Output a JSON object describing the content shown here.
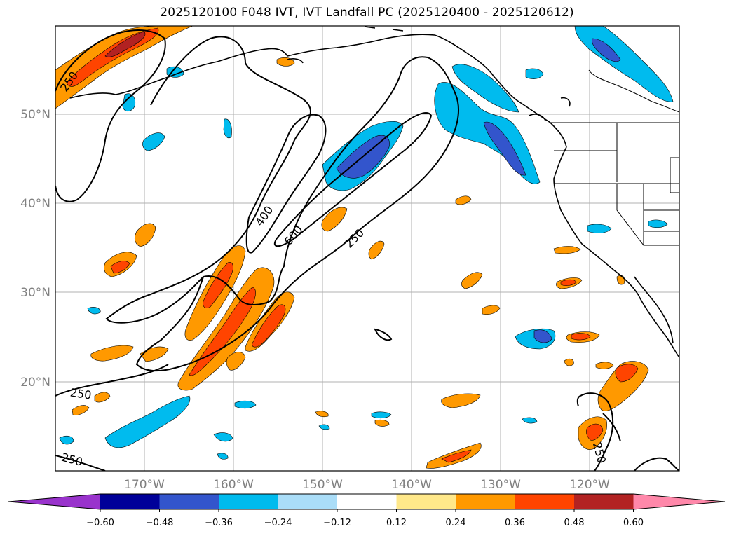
{
  "title": "2025120100 F048 IVT, IVT Landfall PC (2025120400 - 2025120612)",
  "map": {
    "lat_labels": [
      "50°N",
      "40°N",
      "30°N",
      "20°N"
    ],
    "lon_labels": [
      "170°W",
      "160°W",
      "150°W",
      "140°W",
      "130°W",
      "120°W"
    ],
    "contour_labels": [
      "250",
      "400",
      "600",
      "250",
      "250",
      "250",
      "250"
    ],
    "contour_color": "#000000",
    "grid": true
  },
  "colorbar": {
    "ticks": [
      "−0.60",
      "−0.48",
      "−0.36",
      "−0.24",
      "−0.12",
      "0.12",
      "0.24",
      "0.36",
      "0.48",
      "0.60"
    ],
    "colors": [
      "#9933cc",
      "#000099",
      "#3355cc",
      "#00bbee",
      "#aaddf8",
      "#ffffff",
      "#ffe88a",
      "#ff9900",
      "#ff4400",
      "#b22222",
      "#ff88aa"
    ]
  }
}
